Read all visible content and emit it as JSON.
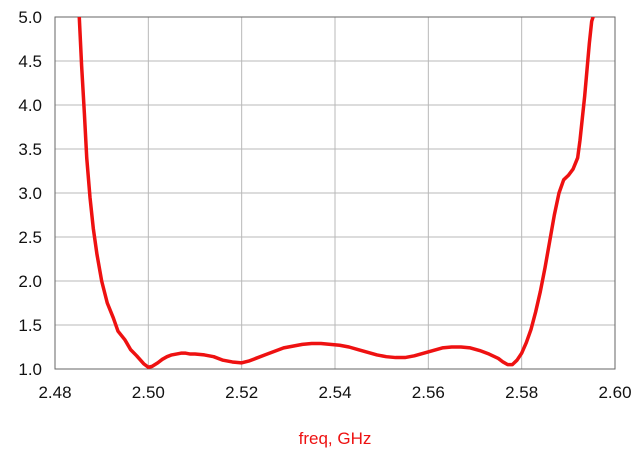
{
  "chart_data": {
    "type": "line",
    "title": "",
    "xlabel": "freq, GHz",
    "ylabel": "",
    "xlim": [
      2.48,
      2.6
    ],
    "ylim": [
      1.0,
      5.0
    ],
    "x_ticks": [
      2.48,
      2.5,
      2.52,
      2.54,
      2.56,
      2.58,
      2.6
    ],
    "x_tick_labels": [
      "2.48",
      "2.50",
      "2.52",
      "2.54",
      "2.56",
      "2.58",
      "2.60"
    ],
    "y_ticks": [
      1.0,
      1.5,
      2.0,
      2.5,
      3.0,
      3.5,
      4.0,
      4.5,
      5.0
    ],
    "y_tick_labels": [
      "1.0",
      "1.5",
      "2.0",
      "2.5",
      "3.0",
      "3.5",
      "4.0",
      "4.5",
      "5.0"
    ],
    "grid": true,
    "colors": {
      "line": "#ee1111",
      "xlabel": "#ee1111",
      "grid": "#b8b8b8",
      "axis": "#666666"
    },
    "series": [
      {
        "x": [
          2.4852,
          2.4857,
          2.4863,
          2.4868,
          2.4875,
          2.4882,
          2.489,
          2.49,
          2.4912,
          2.4925,
          2.4935,
          2.495,
          2.4962,
          2.4975,
          2.499,
          2.5,
          2.5008,
          2.502,
          2.503,
          2.504,
          2.505,
          2.506,
          2.507,
          2.508,
          2.509,
          2.51,
          2.512,
          2.514,
          2.516,
          2.518,
          2.52,
          2.5215,
          2.523,
          2.525,
          2.527,
          2.529,
          2.531,
          2.533,
          2.535,
          2.537,
          2.539,
          2.541,
          2.543,
          2.545,
          2.547,
          2.549,
          2.551,
          2.553,
          2.555,
          2.557,
          2.559,
          2.561,
          2.563,
          2.565,
          2.567,
          2.569,
          2.571,
          2.573,
          2.575,
          2.576,
          2.577,
          2.578,
          2.579,
          2.58,
          2.581,
          2.582,
          2.583,
          2.584,
          2.585,
          2.586,
          2.587,
          2.588,
          2.589,
          2.59,
          2.591,
          2.592,
          2.5925,
          2.593,
          2.5935,
          2.594,
          2.5945,
          2.595,
          2.5953
        ],
        "y": [
          5.0,
          4.45,
          3.9,
          3.4,
          2.95,
          2.6,
          2.3,
          2.0,
          1.75,
          1.58,
          1.43,
          1.33,
          1.22,
          1.15,
          1.06,
          1.02,
          1.03,
          1.07,
          1.11,
          1.14,
          1.16,
          1.17,
          1.18,
          1.18,
          1.17,
          1.17,
          1.16,
          1.14,
          1.1,
          1.08,
          1.07,
          1.09,
          1.12,
          1.16,
          1.2,
          1.24,
          1.26,
          1.28,
          1.29,
          1.29,
          1.28,
          1.27,
          1.25,
          1.22,
          1.19,
          1.16,
          1.14,
          1.13,
          1.13,
          1.15,
          1.18,
          1.21,
          1.24,
          1.25,
          1.25,
          1.24,
          1.21,
          1.17,
          1.12,
          1.08,
          1.05,
          1.05,
          1.1,
          1.18,
          1.3,
          1.45,
          1.65,
          1.88,
          2.15,
          2.45,
          2.75,
          3.0,
          3.15,
          3.2,
          3.27,
          3.4,
          3.6,
          3.85,
          4.1,
          4.4,
          4.7,
          4.95,
          5.0
        ]
      }
    ]
  }
}
